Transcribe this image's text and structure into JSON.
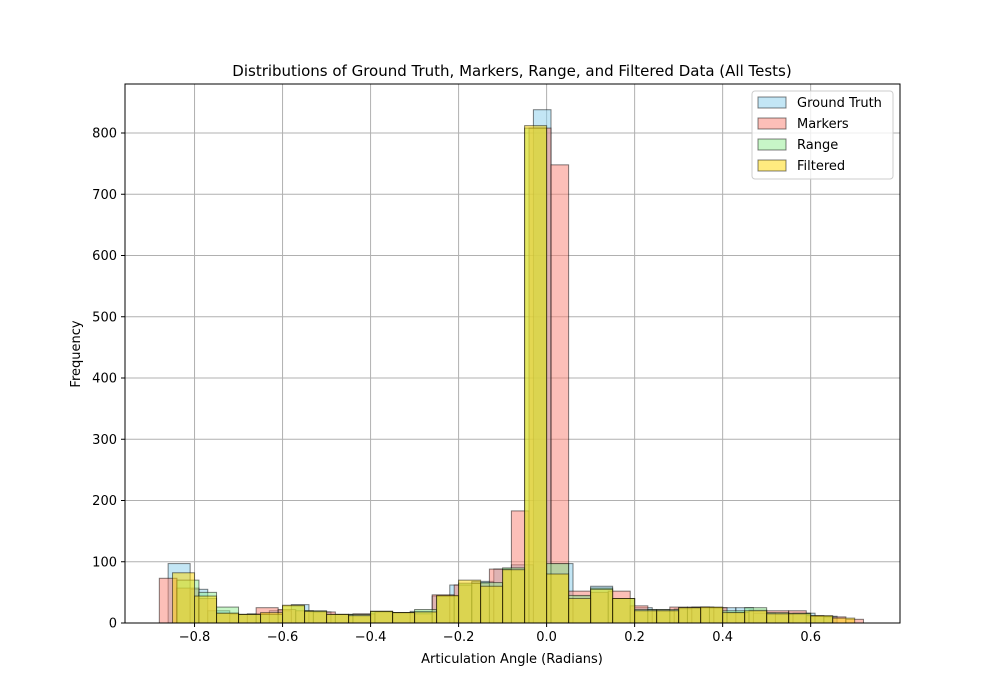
{
  "chart_data": {
    "type": "bar",
    "title": "Distributions of Ground Truth, Markers, Range, and Filtered Data (All Tests)",
    "xlabel": "Articulation Angle (Radians)",
    "ylabel": "Frequency",
    "xlim": [
      -0.958,
      0.803
    ],
    "ylim": [
      0,
      880
    ],
    "xticks": [
      -0.8,
      -0.6,
      -0.4,
      -0.2,
      0.0,
      0.2,
      0.4,
      0.6
    ],
    "xtick_labels": [
      "−0.8",
      "−0.6",
      "−0.4",
      "−0.2",
      "0.0",
      "0.2",
      "0.4",
      "0.6"
    ],
    "yticks": [
      0,
      100,
      200,
      300,
      400,
      500,
      600,
      700,
      800
    ],
    "ytick_labels": [
      "0",
      "100",
      "200",
      "300",
      "400",
      "500",
      "600",
      "700",
      "800"
    ],
    "grid": true,
    "legend_position": "upper-right",
    "series": [
      {
        "name": "Ground Truth",
        "color": "#87ceeb",
        "opacity": 0.5,
        "bins": [
          [
            -0.86,
            -0.81,
            97
          ],
          [
            -0.81,
            -0.77,
            55
          ],
          [
            -0.77,
            -0.72,
            20
          ],
          [
            -0.72,
            -0.68,
            14
          ],
          [
            -0.68,
            -0.63,
            15
          ],
          [
            -0.63,
            -0.58,
            20
          ],
          [
            -0.58,
            -0.54,
            30
          ],
          [
            -0.54,
            -0.49,
            18
          ],
          [
            -0.49,
            -0.45,
            14
          ],
          [
            -0.45,
            -0.4,
            14
          ],
          [
            -0.4,
            -0.35,
            19
          ],
          [
            -0.35,
            -0.31,
            17
          ],
          [
            -0.31,
            -0.26,
            19
          ],
          [
            -0.26,
            -0.22,
            44
          ],
          [
            -0.22,
            -0.17,
            62
          ],
          [
            -0.17,
            -0.12,
            68
          ],
          [
            -0.12,
            -0.08,
            88
          ],
          [
            -0.08,
            -0.03,
            95
          ],
          [
            -0.03,
            0.01,
            838
          ],
          [
            0.01,
            0.06,
            97
          ],
          [
            0.06,
            0.1,
            44
          ],
          [
            0.1,
            0.15,
            60
          ],
          [
            0.15,
            0.2,
            40
          ],
          [
            0.2,
            0.24,
            25
          ],
          [
            0.24,
            0.29,
            20
          ],
          [
            0.29,
            0.33,
            23
          ],
          [
            0.33,
            0.38,
            26
          ],
          [
            0.38,
            0.43,
            25
          ],
          [
            0.43,
            0.47,
            25
          ],
          [
            0.47,
            0.52,
            16
          ],
          [
            0.52,
            0.56,
            15
          ],
          [
            0.56,
            0.61,
            16
          ],
          [
            0.61,
            0.66,
            11
          ]
        ]
      },
      {
        "name": "Markers",
        "color": "#fa8072",
        "opacity": 0.5,
        "bins": [
          [
            -0.88,
            -0.84,
            73
          ],
          [
            -0.84,
            -0.79,
            57
          ],
          [
            -0.79,
            -0.75,
            40
          ],
          [
            -0.75,
            -0.7,
            16
          ],
          [
            -0.7,
            -0.66,
            14
          ],
          [
            -0.66,
            -0.61,
            25
          ],
          [
            -0.61,
            -0.57,
            22
          ],
          [
            -0.57,
            -0.53,
            20
          ],
          [
            -0.53,
            -0.48,
            18
          ],
          [
            -0.48,
            -0.44,
            14
          ],
          [
            -0.44,
            -0.39,
            15
          ],
          [
            -0.39,
            -0.35,
            18
          ],
          [
            -0.35,
            -0.3,
            17
          ],
          [
            -0.3,
            -0.26,
            15
          ],
          [
            -0.26,
            -0.21,
            46
          ],
          [
            -0.21,
            -0.17,
            62
          ],
          [
            -0.17,
            -0.13,
            65
          ],
          [
            -0.13,
            -0.08,
            88
          ],
          [
            -0.08,
            -0.04,
            183
          ],
          [
            -0.04,
            0.01,
            808
          ],
          [
            0.01,
            0.05,
            748
          ],
          [
            0.05,
            0.1,
            52
          ],
          [
            0.1,
            0.14,
            50
          ],
          [
            0.14,
            0.19,
            52
          ],
          [
            0.19,
            0.23,
            28
          ],
          [
            0.23,
            0.28,
            22
          ],
          [
            0.28,
            0.32,
            26
          ],
          [
            0.32,
            0.37,
            26
          ],
          [
            0.37,
            0.41,
            25
          ],
          [
            0.41,
            0.46,
            17
          ],
          [
            0.46,
            0.5,
            21
          ],
          [
            0.5,
            0.55,
            20
          ],
          [
            0.55,
            0.59,
            20
          ],
          [
            0.59,
            0.63,
            12
          ],
          [
            0.63,
            0.68,
            10
          ],
          [
            0.68,
            0.72,
            6
          ]
        ]
      },
      {
        "name": "Range",
        "color": "#90ee90",
        "opacity": 0.5,
        "bins": [
          [
            -0.84,
            -0.79,
            70
          ],
          [
            -0.79,
            -0.75,
            50
          ],
          [
            -0.75,
            -0.7,
            26
          ],
          [
            -0.7,
            -0.65,
            14
          ],
          [
            -0.65,
            -0.6,
            14
          ],
          [
            -0.6,
            -0.55,
            28
          ],
          [
            -0.55,
            -0.5,
            20
          ],
          [
            -0.5,
            -0.45,
            14
          ],
          [
            -0.45,
            -0.4,
            14
          ],
          [
            -0.4,
            -0.35,
            19
          ],
          [
            -0.35,
            -0.3,
            17
          ],
          [
            -0.3,
            -0.25,
            22
          ],
          [
            -0.25,
            -0.2,
            44
          ],
          [
            -0.2,
            -0.15,
            65
          ],
          [
            -0.15,
            -0.1,
            66
          ],
          [
            -0.1,
            -0.05,
            90
          ],
          [
            -0.05,
            0.0,
            808
          ],
          [
            0.0,
            0.05,
            97
          ],
          [
            0.05,
            0.1,
            45
          ],
          [
            0.1,
            0.15,
            57
          ],
          [
            0.15,
            0.2,
            40
          ],
          [
            0.2,
            0.25,
            22
          ],
          [
            0.25,
            0.3,
            22
          ],
          [
            0.3,
            0.35,
            25
          ],
          [
            0.35,
            0.4,
            25
          ],
          [
            0.4,
            0.45,
            20
          ],
          [
            0.45,
            0.5,
            25
          ],
          [
            0.5,
            0.55,
            17
          ],
          [
            0.55,
            0.6,
            16
          ],
          [
            0.6,
            0.65,
            11
          ]
        ]
      },
      {
        "name": "Filtered",
        "color": "#ffd700",
        "opacity": 0.5,
        "bins": [
          [
            -0.85,
            -0.8,
            82
          ],
          [
            -0.8,
            -0.75,
            44
          ],
          [
            -0.75,
            -0.7,
            16
          ],
          [
            -0.7,
            -0.65,
            14
          ],
          [
            -0.65,
            -0.6,
            17
          ],
          [
            -0.6,
            -0.55,
            29
          ],
          [
            -0.55,
            -0.5,
            19
          ],
          [
            -0.5,
            -0.45,
            14
          ],
          [
            -0.45,
            -0.4,
            12
          ],
          [
            -0.4,
            -0.35,
            19
          ],
          [
            -0.35,
            -0.3,
            17
          ],
          [
            -0.3,
            -0.25,
            18
          ],
          [
            -0.25,
            -0.2,
            45
          ],
          [
            -0.2,
            -0.15,
            70
          ],
          [
            -0.15,
            -0.1,
            60
          ],
          [
            -0.1,
            -0.05,
            87
          ],
          [
            -0.05,
            0.0,
            812
          ],
          [
            0.0,
            0.05,
            80
          ],
          [
            0.05,
            0.1,
            40
          ],
          [
            0.1,
            0.15,
            55
          ],
          [
            0.15,
            0.2,
            40
          ],
          [
            0.2,
            0.25,
            20
          ],
          [
            0.25,
            0.3,
            20
          ],
          [
            0.3,
            0.35,
            25
          ],
          [
            0.35,
            0.4,
            26
          ],
          [
            0.4,
            0.45,
            17
          ],
          [
            0.45,
            0.5,
            20
          ],
          [
            0.5,
            0.55,
            15
          ],
          [
            0.55,
            0.6,
            15
          ],
          [
            0.6,
            0.65,
            12
          ],
          [
            0.65,
            0.7,
            8
          ]
        ]
      }
    ]
  }
}
